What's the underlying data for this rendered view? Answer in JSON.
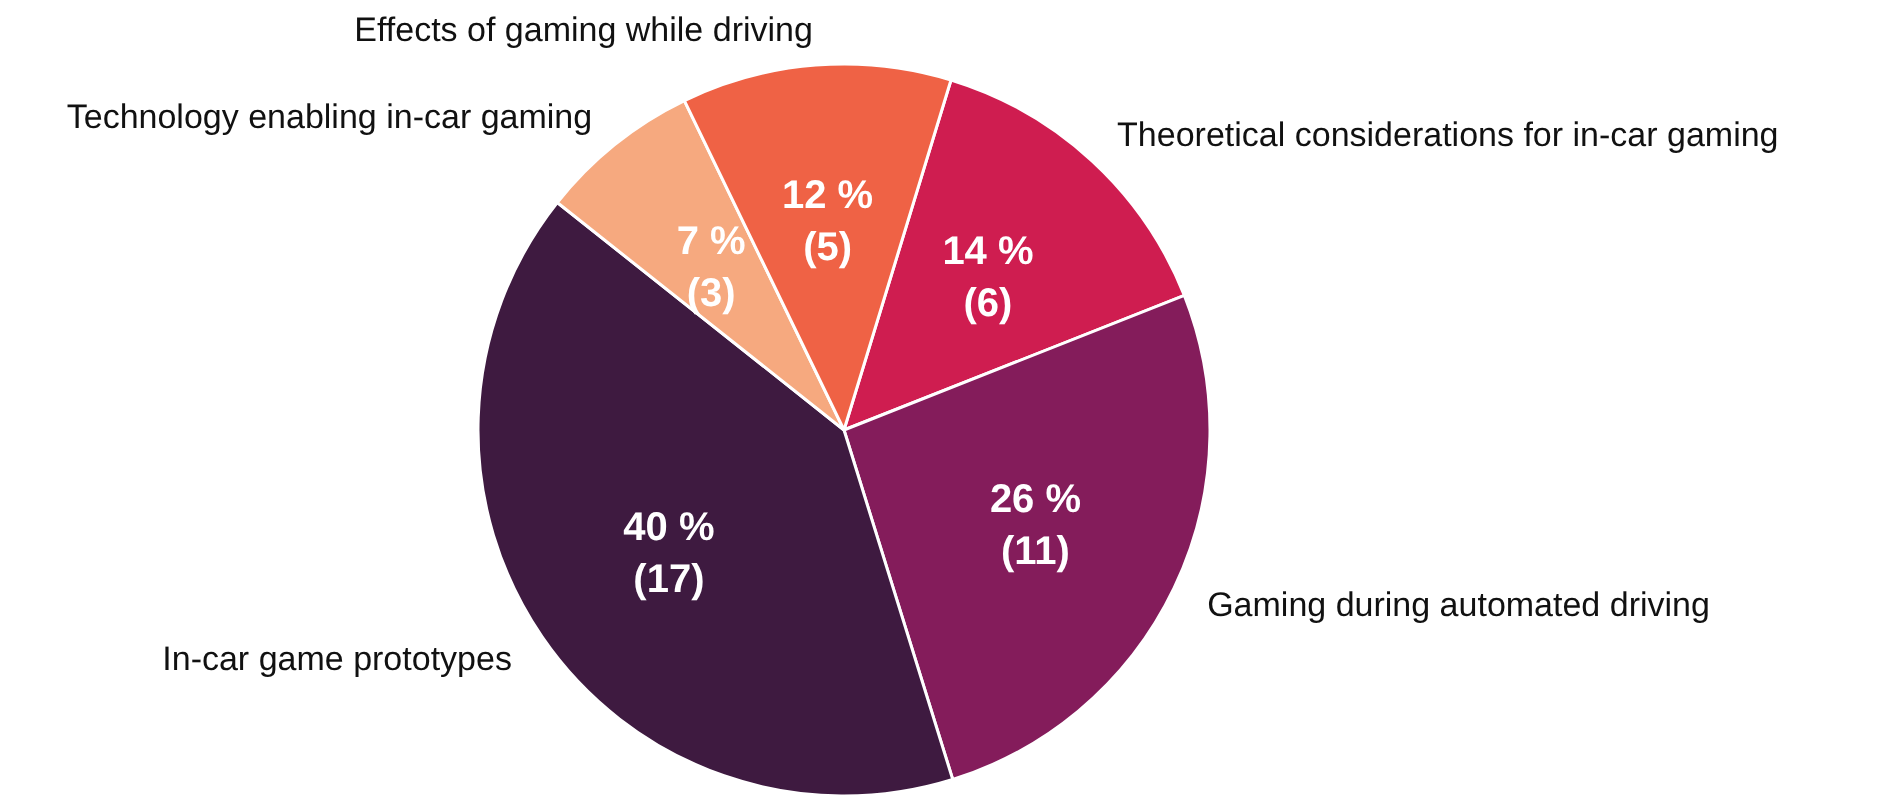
{
  "chart_data": {
    "type": "pie",
    "categories": [
      "Theoretical considerations for in-car gaming",
      "Gaming during automated driving",
      "In-car game prototypes",
      "Technology enabling in-car gaming",
      "Effects of gaming while driving"
    ],
    "values": [
      6,
      11,
      17,
      3,
      5
    ],
    "colors": [
      "#cf1d50",
      "#841c5b",
      "#3e1a40",
      "#f6a97f",
      "#ef6245"
    ],
    "value_labels": [
      "14 %\n(6)",
      "26 %\n(11)",
      "40 %\n(17)",
      "7 %\n(3)",
      "12 %\n(5)"
    ]
  }
}
